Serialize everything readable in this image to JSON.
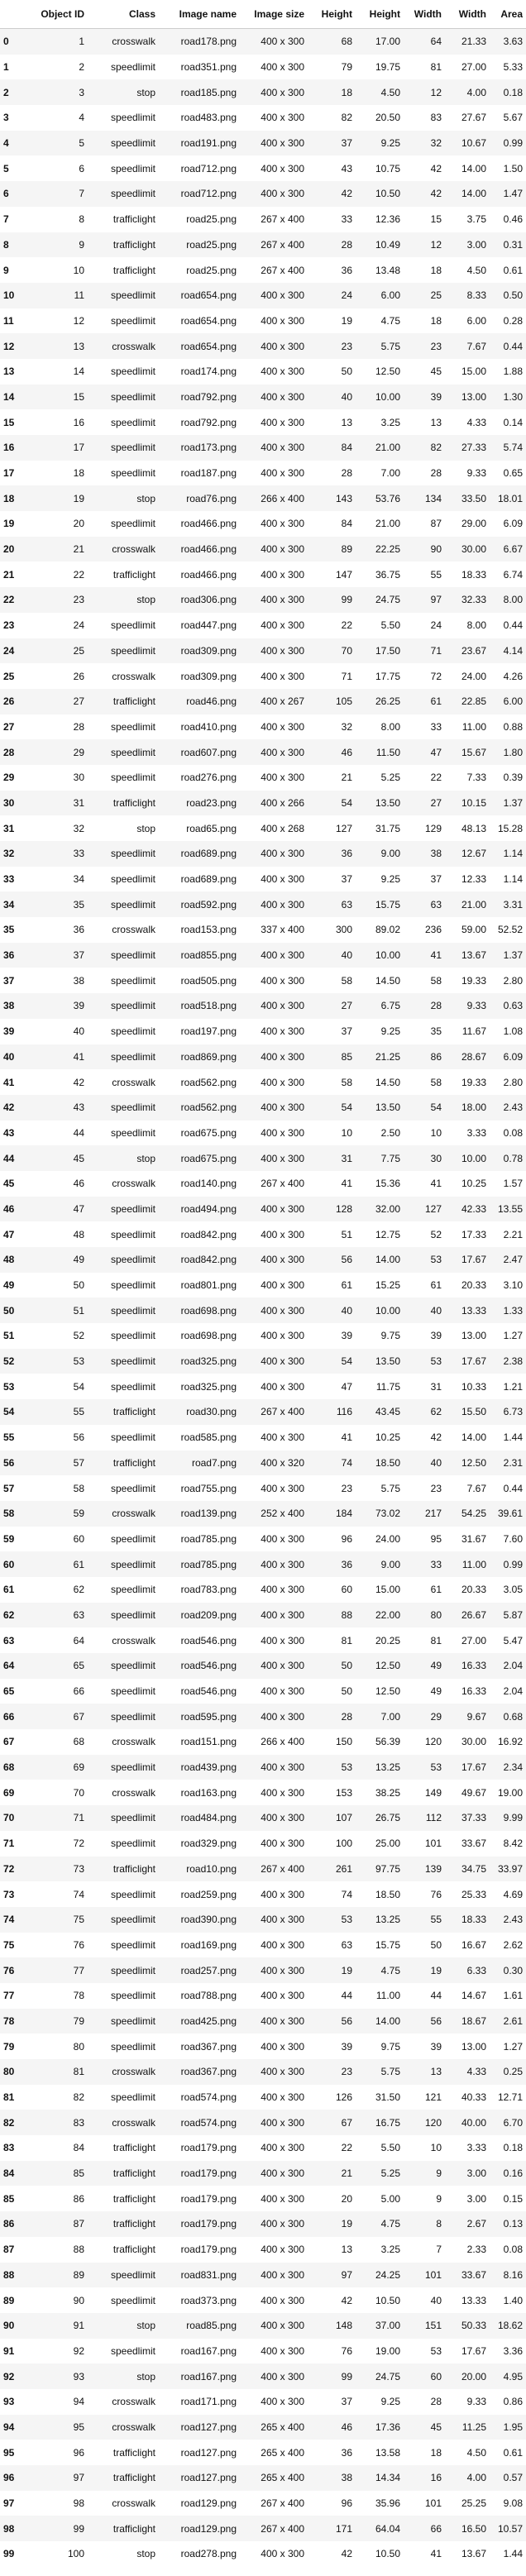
{
  "table": {
    "columns": [
      "",
      "Object ID",
      "Class",
      "Image name",
      "Image size",
      "Height",
      "Height",
      "Width",
      "Width",
      "Area"
    ],
    "rows": [
      [
        "0",
        "1",
        "crosswalk",
        "road178.png",
        "400 x 300",
        "68",
        "17.00",
        "64",
        "21.33",
        "3.63"
      ],
      [
        "1",
        "2",
        "speedlimit",
        "road351.png",
        "400 x 300",
        "79",
        "19.75",
        "81",
        "27.00",
        "5.33"
      ],
      [
        "2",
        "3",
        "stop",
        "road185.png",
        "400 x 300",
        "18",
        "4.50",
        "12",
        "4.00",
        "0.18"
      ],
      [
        "3",
        "4",
        "speedlimit",
        "road483.png",
        "400 x 300",
        "82",
        "20.50",
        "83",
        "27.67",
        "5.67"
      ],
      [
        "4",
        "5",
        "speedlimit",
        "road191.png",
        "400 x 300",
        "37",
        "9.25",
        "32",
        "10.67",
        "0.99"
      ],
      [
        "5",
        "6",
        "speedlimit",
        "road712.png",
        "400 x 300",
        "43",
        "10.75",
        "42",
        "14.00",
        "1.50"
      ],
      [
        "6",
        "7",
        "speedlimit",
        "road712.png",
        "400 x 300",
        "42",
        "10.50",
        "42",
        "14.00",
        "1.47"
      ],
      [
        "7",
        "8",
        "trafficlight",
        "road25.png",
        "267 x 400",
        "33",
        "12.36",
        "15",
        "3.75",
        "0.46"
      ],
      [
        "8",
        "9",
        "trafficlight",
        "road25.png",
        "267 x 400",
        "28",
        "10.49",
        "12",
        "3.00",
        "0.31"
      ],
      [
        "9",
        "10",
        "trafficlight",
        "road25.png",
        "267 x 400",
        "36",
        "13.48",
        "18",
        "4.50",
        "0.61"
      ],
      [
        "10",
        "11",
        "speedlimit",
        "road654.png",
        "400 x 300",
        "24",
        "6.00",
        "25",
        "8.33",
        "0.50"
      ],
      [
        "11",
        "12",
        "speedlimit",
        "road654.png",
        "400 x 300",
        "19",
        "4.75",
        "18",
        "6.00",
        "0.28"
      ],
      [
        "12",
        "13",
        "crosswalk",
        "road654.png",
        "400 x 300",
        "23",
        "5.75",
        "23",
        "7.67",
        "0.44"
      ],
      [
        "13",
        "14",
        "speedlimit",
        "road174.png",
        "400 x 300",
        "50",
        "12.50",
        "45",
        "15.00",
        "1.88"
      ],
      [
        "14",
        "15",
        "speedlimit",
        "road792.png",
        "400 x 300",
        "40",
        "10.00",
        "39",
        "13.00",
        "1.30"
      ],
      [
        "15",
        "16",
        "speedlimit",
        "road792.png",
        "400 x 300",
        "13",
        "3.25",
        "13",
        "4.33",
        "0.14"
      ],
      [
        "16",
        "17",
        "speedlimit",
        "road173.png",
        "400 x 300",
        "84",
        "21.00",
        "82",
        "27.33",
        "5.74"
      ],
      [
        "17",
        "18",
        "speedlimit",
        "road187.png",
        "400 x 300",
        "28",
        "7.00",
        "28",
        "9.33",
        "0.65"
      ],
      [
        "18",
        "19",
        "stop",
        "road76.png",
        "266 x 400",
        "143",
        "53.76",
        "134",
        "33.50",
        "18.01"
      ],
      [
        "19",
        "20",
        "speedlimit",
        "road466.png",
        "400 x 300",
        "84",
        "21.00",
        "87",
        "29.00",
        "6.09"
      ],
      [
        "20",
        "21",
        "crosswalk",
        "road466.png",
        "400 x 300",
        "89",
        "22.25",
        "90",
        "30.00",
        "6.67"
      ],
      [
        "21",
        "22",
        "trafficlight",
        "road466.png",
        "400 x 300",
        "147",
        "36.75",
        "55",
        "18.33",
        "6.74"
      ],
      [
        "22",
        "23",
        "stop",
        "road306.png",
        "400 x 300",
        "99",
        "24.75",
        "97",
        "32.33",
        "8.00"
      ],
      [
        "23",
        "24",
        "speedlimit",
        "road447.png",
        "400 x 300",
        "22",
        "5.50",
        "24",
        "8.00",
        "0.44"
      ],
      [
        "24",
        "25",
        "speedlimit",
        "road309.png",
        "400 x 300",
        "70",
        "17.50",
        "71",
        "23.67",
        "4.14"
      ],
      [
        "25",
        "26",
        "crosswalk",
        "road309.png",
        "400 x 300",
        "71",
        "17.75",
        "72",
        "24.00",
        "4.26"
      ],
      [
        "26",
        "27",
        "trafficlight",
        "road46.png",
        "400 x 267",
        "105",
        "26.25",
        "61",
        "22.85",
        "6.00"
      ],
      [
        "27",
        "28",
        "speedlimit",
        "road410.png",
        "400 x 300",
        "32",
        "8.00",
        "33",
        "11.00",
        "0.88"
      ],
      [
        "28",
        "29",
        "speedlimit",
        "road607.png",
        "400 x 300",
        "46",
        "11.50",
        "47",
        "15.67",
        "1.80"
      ],
      [
        "29",
        "30",
        "speedlimit",
        "road276.png",
        "400 x 300",
        "21",
        "5.25",
        "22",
        "7.33",
        "0.39"
      ],
      [
        "30",
        "31",
        "trafficlight",
        "road23.png",
        "400 x 266",
        "54",
        "13.50",
        "27",
        "10.15",
        "1.37"
      ],
      [
        "31",
        "32",
        "stop",
        "road65.png",
        "400 x 268",
        "127",
        "31.75",
        "129",
        "48.13",
        "15.28"
      ],
      [
        "32",
        "33",
        "speedlimit",
        "road689.png",
        "400 x 300",
        "36",
        "9.00",
        "38",
        "12.67",
        "1.14"
      ],
      [
        "33",
        "34",
        "speedlimit",
        "road689.png",
        "400 x 300",
        "37",
        "9.25",
        "37",
        "12.33",
        "1.14"
      ],
      [
        "34",
        "35",
        "speedlimit",
        "road592.png",
        "400 x 300",
        "63",
        "15.75",
        "63",
        "21.00",
        "3.31"
      ],
      [
        "35",
        "36",
        "crosswalk",
        "road153.png",
        "337 x 400",
        "300",
        "89.02",
        "236",
        "59.00",
        "52.52"
      ],
      [
        "36",
        "37",
        "speedlimit",
        "road855.png",
        "400 x 300",
        "40",
        "10.00",
        "41",
        "13.67",
        "1.37"
      ],
      [
        "37",
        "38",
        "speedlimit",
        "road505.png",
        "400 x 300",
        "58",
        "14.50",
        "58",
        "19.33",
        "2.80"
      ],
      [
        "38",
        "39",
        "speedlimit",
        "road518.png",
        "400 x 300",
        "27",
        "6.75",
        "28",
        "9.33",
        "0.63"
      ],
      [
        "39",
        "40",
        "speedlimit",
        "road197.png",
        "400 x 300",
        "37",
        "9.25",
        "35",
        "11.67",
        "1.08"
      ],
      [
        "40",
        "41",
        "speedlimit",
        "road869.png",
        "400 x 300",
        "85",
        "21.25",
        "86",
        "28.67",
        "6.09"
      ],
      [
        "41",
        "42",
        "crosswalk",
        "road562.png",
        "400 x 300",
        "58",
        "14.50",
        "58",
        "19.33",
        "2.80"
      ],
      [
        "42",
        "43",
        "speedlimit",
        "road562.png",
        "400 x 300",
        "54",
        "13.50",
        "54",
        "18.00",
        "2.43"
      ],
      [
        "43",
        "44",
        "speedlimit",
        "road675.png",
        "400 x 300",
        "10",
        "2.50",
        "10",
        "3.33",
        "0.08"
      ],
      [
        "44",
        "45",
        "stop",
        "road675.png",
        "400 x 300",
        "31",
        "7.75",
        "30",
        "10.00",
        "0.78"
      ],
      [
        "45",
        "46",
        "crosswalk",
        "road140.png",
        "267 x 400",
        "41",
        "15.36",
        "41",
        "10.25",
        "1.57"
      ],
      [
        "46",
        "47",
        "speedlimit",
        "road494.png",
        "400 x 300",
        "128",
        "32.00",
        "127",
        "42.33",
        "13.55"
      ],
      [
        "47",
        "48",
        "speedlimit",
        "road842.png",
        "400 x 300",
        "51",
        "12.75",
        "52",
        "17.33",
        "2.21"
      ],
      [
        "48",
        "49",
        "speedlimit",
        "road842.png",
        "400 x 300",
        "56",
        "14.00",
        "53",
        "17.67",
        "2.47"
      ],
      [
        "49",
        "50",
        "speedlimit",
        "road801.png",
        "400 x 300",
        "61",
        "15.25",
        "61",
        "20.33",
        "3.10"
      ],
      [
        "50",
        "51",
        "speedlimit",
        "road698.png",
        "400 x 300",
        "40",
        "10.00",
        "40",
        "13.33",
        "1.33"
      ],
      [
        "51",
        "52",
        "speedlimit",
        "road698.png",
        "400 x 300",
        "39",
        "9.75",
        "39",
        "13.00",
        "1.27"
      ],
      [
        "52",
        "53",
        "speedlimit",
        "road325.png",
        "400 x 300",
        "54",
        "13.50",
        "53",
        "17.67",
        "2.38"
      ],
      [
        "53",
        "54",
        "speedlimit",
        "road325.png",
        "400 x 300",
        "47",
        "11.75",
        "31",
        "10.33",
        "1.21"
      ],
      [
        "54",
        "55",
        "trafficlight",
        "road30.png",
        "267 x 400",
        "116",
        "43.45",
        "62",
        "15.50",
        "6.73"
      ],
      [
        "55",
        "56",
        "speedlimit",
        "road585.png",
        "400 x 300",
        "41",
        "10.25",
        "42",
        "14.00",
        "1.44"
      ],
      [
        "56",
        "57",
        "trafficlight",
        "road7.png",
        "400 x 320",
        "74",
        "18.50",
        "40",
        "12.50",
        "2.31"
      ],
      [
        "57",
        "58",
        "speedlimit",
        "road755.png",
        "400 x 300",
        "23",
        "5.75",
        "23",
        "7.67",
        "0.44"
      ],
      [
        "58",
        "59",
        "crosswalk",
        "road139.png",
        "252 x 400",
        "184",
        "73.02",
        "217",
        "54.25",
        "39.61"
      ],
      [
        "59",
        "60",
        "speedlimit",
        "road785.png",
        "400 x 300",
        "96",
        "24.00",
        "95",
        "31.67",
        "7.60"
      ],
      [
        "60",
        "61",
        "speedlimit",
        "road785.png",
        "400 x 300",
        "36",
        "9.00",
        "33",
        "11.00",
        "0.99"
      ],
      [
        "61",
        "62",
        "speedlimit",
        "road783.png",
        "400 x 300",
        "60",
        "15.00",
        "61",
        "20.33",
        "3.05"
      ],
      [
        "62",
        "63",
        "speedlimit",
        "road209.png",
        "400 x 300",
        "88",
        "22.00",
        "80",
        "26.67",
        "5.87"
      ],
      [
        "63",
        "64",
        "crosswalk",
        "road546.png",
        "400 x 300",
        "81",
        "20.25",
        "81",
        "27.00",
        "5.47"
      ],
      [
        "64",
        "65",
        "speedlimit",
        "road546.png",
        "400 x 300",
        "50",
        "12.50",
        "49",
        "16.33",
        "2.04"
      ],
      [
        "65",
        "66",
        "speedlimit",
        "road546.png",
        "400 x 300",
        "50",
        "12.50",
        "49",
        "16.33",
        "2.04"
      ],
      [
        "66",
        "67",
        "speedlimit",
        "road595.png",
        "400 x 300",
        "28",
        "7.00",
        "29",
        "9.67",
        "0.68"
      ],
      [
        "67",
        "68",
        "crosswalk",
        "road151.png",
        "266 x 400",
        "150",
        "56.39",
        "120",
        "30.00",
        "16.92"
      ],
      [
        "68",
        "69",
        "speedlimit",
        "road439.png",
        "400 x 300",
        "53",
        "13.25",
        "53",
        "17.67",
        "2.34"
      ],
      [
        "69",
        "70",
        "crosswalk",
        "road163.png",
        "400 x 300",
        "153",
        "38.25",
        "149",
        "49.67",
        "19.00"
      ],
      [
        "70",
        "71",
        "speedlimit",
        "road484.png",
        "400 x 300",
        "107",
        "26.75",
        "112",
        "37.33",
        "9.99"
      ],
      [
        "71",
        "72",
        "speedlimit",
        "road329.png",
        "400 x 300",
        "100",
        "25.00",
        "101",
        "33.67",
        "8.42"
      ],
      [
        "72",
        "73",
        "trafficlight",
        "road10.png",
        "267 x 400",
        "261",
        "97.75",
        "139",
        "34.75",
        "33.97"
      ],
      [
        "73",
        "74",
        "speedlimit",
        "road259.png",
        "400 x 300",
        "74",
        "18.50",
        "76",
        "25.33",
        "4.69"
      ],
      [
        "74",
        "75",
        "speedlimit",
        "road390.png",
        "400 x 300",
        "53",
        "13.25",
        "55",
        "18.33",
        "2.43"
      ],
      [
        "75",
        "76",
        "speedlimit",
        "road169.png",
        "400 x 300",
        "63",
        "15.75",
        "50",
        "16.67",
        "2.62"
      ],
      [
        "76",
        "77",
        "speedlimit",
        "road257.png",
        "400 x 300",
        "19",
        "4.75",
        "19",
        "6.33",
        "0.30"
      ],
      [
        "77",
        "78",
        "speedlimit",
        "road788.png",
        "400 x 300",
        "44",
        "11.00",
        "44",
        "14.67",
        "1.61"
      ],
      [
        "78",
        "79",
        "speedlimit",
        "road425.png",
        "400 x 300",
        "56",
        "14.00",
        "56",
        "18.67",
        "2.61"
      ],
      [
        "79",
        "80",
        "speedlimit",
        "road367.png",
        "400 x 300",
        "39",
        "9.75",
        "39",
        "13.00",
        "1.27"
      ],
      [
        "80",
        "81",
        "crosswalk",
        "road367.png",
        "400 x 300",
        "23",
        "5.75",
        "13",
        "4.33",
        "0.25"
      ],
      [
        "81",
        "82",
        "speedlimit",
        "road574.png",
        "400 x 300",
        "126",
        "31.50",
        "121",
        "40.33",
        "12.71"
      ],
      [
        "82",
        "83",
        "crosswalk",
        "road574.png",
        "400 x 300",
        "67",
        "16.75",
        "120",
        "40.00",
        "6.70"
      ],
      [
        "83",
        "84",
        "trafficlight",
        "road179.png",
        "400 x 300",
        "22",
        "5.50",
        "10",
        "3.33",
        "0.18"
      ],
      [
        "84",
        "85",
        "trafficlight",
        "road179.png",
        "400 x 300",
        "21",
        "5.25",
        "9",
        "3.00",
        "0.16"
      ],
      [
        "85",
        "86",
        "trafficlight",
        "road179.png",
        "400 x 300",
        "20",
        "5.00",
        "9",
        "3.00",
        "0.15"
      ],
      [
        "86",
        "87",
        "trafficlight",
        "road179.png",
        "400 x 300",
        "19",
        "4.75",
        "8",
        "2.67",
        "0.13"
      ],
      [
        "87",
        "88",
        "trafficlight",
        "road179.png",
        "400 x 300",
        "13",
        "3.25",
        "7",
        "2.33",
        "0.08"
      ],
      [
        "88",
        "89",
        "speedlimit",
        "road831.png",
        "400 x 300",
        "97",
        "24.25",
        "101",
        "33.67",
        "8.16"
      ],
      [
        "89",
        "90",
        "speedlimit",
        "road373.png",
        "400 x 300",
        "42",
        "10.50",
        "40",
        "13.33",
        "1.40"
      ],
      [
        "90",
        "91",
        "stop",
        "road85.png",
        "400 x 300",
        "148",
        "37.00",
        "151",
        "50.33",
        "18.62"
      ],
      [
        "91",
        "92",
        "speedlimit",
        "road167.png",
        "400 x 300",
        "76",
        "19.00",
        "53",
        "17.67",
        "3.36"
      ],
      [
        "92",
        "93",
        "stop",
        "road167.png",
        "400 x 300",
        "99",
        "24.75",
        "60",
        "20.00",
        "4.95"
      ],
      [
        "93",
        "94",
        "crosswalk",
        "road171.png",
        "400 x 300",
        "37",
        "9.25",
        "28",
        "9.33",
        "0.86"
      ],
      [
        "94",
        "95",
        "crosswalk",
        "road127.png",
        "265 x 400",
        "46",
        "17.36",
        "45",
        "11.25",
        "1.95"
      ],
      [
        "95",
        "96",
        "trafficlight",
        "road127.png",
        "265 x 400",
        "36",
        "13.58",
        "18",
        "4.50",
        "0.61"
      ],
      [
        "96",
        "97",
        "trafficlight",
        "road127.png",
        "265 x 400",
        "38",
        "14.34",
        "16",
        "4.00",
        "0.57"
      ],
      [
        "97",
        "98",
        "crosswalk",
        "road129.png",
        "267 x 400",
        "96",
        "35.96",
        "101",
        "25.25",
        "9.08"
      ],
      [
        "98",
        "99",
        "trafficlight",
        "road129.png",
        "267 x 400",
        "171",
        "64.04",
        "66",
        "16.50",
        "10.57"
      ],
      [
        "99",
        "100",
        "stop",
        "road278.png",
        "400 x 300",
        "42",
        "10.50",
        "41",
        "13.67",
        "1.44"
      ]
    ]
  }
}
